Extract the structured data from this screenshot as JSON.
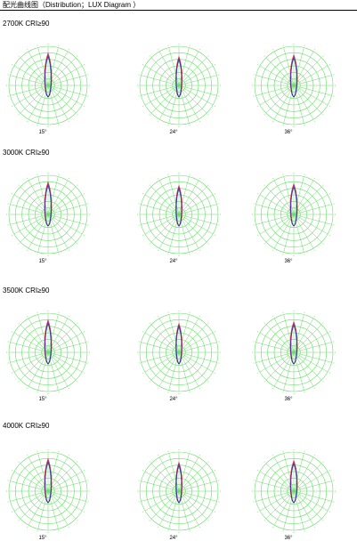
{
  "title": "配光曲线图（Distribution；LUX Diagram ）",
  "sections": [
    {
      "label": "2700K CRI≥90",
      "beams": [
        "15°",
        "24°",
        "36°"
      ]
    },
    {
      "label": "3000K CRI≥90",
      "beams": [
        "15°",
        "24°",
        "36°"
      ]
    },
    {
      "label": "3500K CRI≥90",
      "beams": [
        "15°",
        "24°",
        "36°"
      ]
    },
    {
      "label": "4000K CRI≥90",
      "beams": [
        "15°",
        "24°",
        "36°"
      ]
    }
  ],
  "colors": {
    "grid": "#66dd66",
    "curve_a": "#d0304a",
    "curve_b": "#3030a0"
  }
}
